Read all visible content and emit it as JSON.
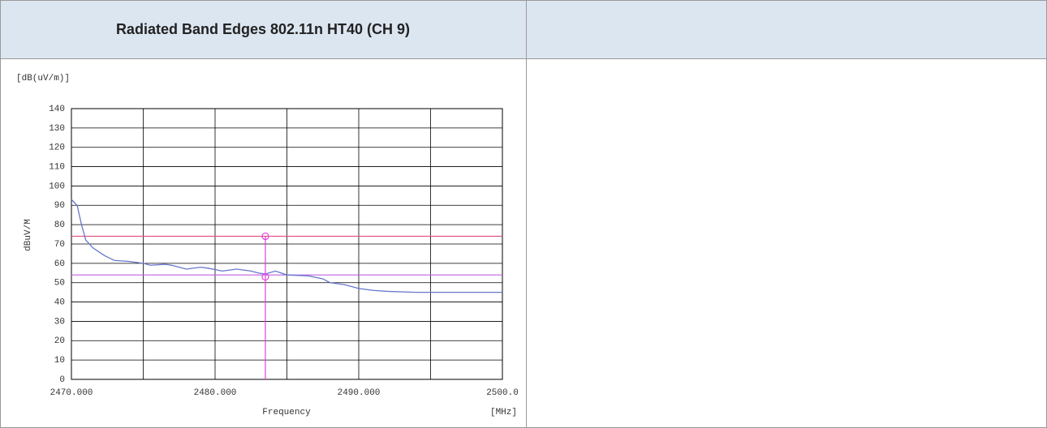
{
  "table": {
    "header": [
      "Radiated Band Edges 802.11n HT40 (CH 9)"
    ]
  },
  "chart_data": {
    "type": "line",
    "unit_label": "[dB(uV/m)]",
    "ylabel": "dBuV/M",
    "xlabel": "Frequency",
    "xunit": "[MHz]",
    "xlim": [
      2470,
      2500
    ],
    "ylim": [
      0,
      140
    ],
    "xticks": [
      {
        "value": 2470,
        "label": "2470.000"
      },
      {
        "value": 2480,
        "label": "2480.000"
      },
      {
        "value": 2490,
        "label": "2490.000"
      },
      {
        "value": 2500,
        "label": "2500.0"
      }
    ],
    "xminor": [
      2475,
      2485,
      2495
    ],
    "yticks": [
      0,
      10,
      20,
      30,
      40,
      50,
      60,
      70,
      80,
      90,
      100,
      110,
      120,
      130,
      140
    ],
    "grid": true,
    "series": [
      {
        "color": "#6677cc",
        "x": [
          2470,
          2470.4,
          2470.7,
          2471,
          2471.5,
          2472.3,
          2473,
          2474,
          2475,
          2475.5,
          2476.5,
          2477,
          2478,
          2479,
          2479.5,
          2480.5,
          2481.5,
          2482.5,
          2483,
          2483.5,
          2484.2,
          2485,
          2486.5,
          2487.5,
          2488,
          2489,
          2490,
          2491,
          2492,
          2494,
          2500
        ],
        "values": [
          93,
          90,
          80,
          72,
          68,
          64,
          61.5,
          61,
          60,
          59,
          59.5,
          59,
          57,
          58,
          57.5,
          56,
          57,
          56,
          55,
          54.5,
          56,
          54,
          53.5,
          52,
          50,
          49,
          47,
          46,
          45.5,
          45,
          45
        ]
      }
    ],
    "limit_lines": [
      {
        "value": 74,
        "color": "#e0507a"
      },
      {
        "value": 54,
        "color": "#c060e0"
      }
    ],
    "marker_line": {
      "x": 2483.5,
      "color": "#e040e0",
      "points": [
        74,
        53
      ]
    }
  }
}
